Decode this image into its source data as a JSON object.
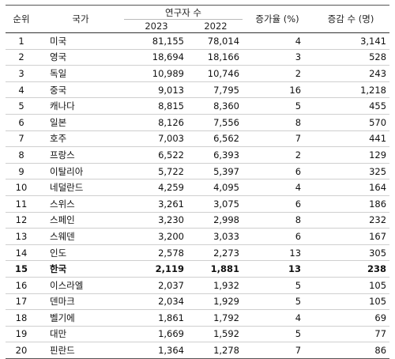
{
  "headers": {
    "rank": "순위",
    "country": "국가",
    "researchers": "연구자 수",
    "year_2023": "2023",
    "year_2022": "2022",
    "growth_rate": "증가율 (%)",
    "change": "증감 수 (명)"
  },
  "rows": [
    {
      "rank": "1",
      "country": "미국",
      "y2023": "81,155",
      "y2022": "78,014",
      "rate": "4",
      "diff": "3,141"
    },
    {
      "rank": "2",
      "country": "영국",
      "y2023": "18,694",
      "y2022": "18,166",
      "rate": "3",
      "diff": "528"
    },
    {
      "rank": "3",
      "country": "독일",
      "y2023": "10,989",
      "y2022": "10,746",
      "rate": "2",
      "diff": "243"
    },
    {
      "rank": "4",
      "country": "중국",
      "y2023": "9,013",
      "y2022": "7,795",
      "rate": "16",
      "diff": "1,218"
    },
    {
      "rank": "5",
      "country": "캐나다",
      "y2023": "8,815",
      "y2022": "8,360",
      "rate": "5",
      "diff": "455"
    },
    {
      "rank": "6",
      "country": "일본",
      "y2023": "8,126",
      "y2022": "7,556",
      "rate": "8",
      "diff": "570"
    },
    {
      "rank": "7",
      "country": "호주",
      "y2023": "7,003",
      "y2022": "6,562",
      "rate": "7",
      "diff": "441"
    },
    {
      "rank": "8",
      "country": "프랑스",
      "y2023": "6,522",
      "y2022": "6,393",
      "rate": "2",
      "diff": "129"
    },
    {
      "rank": "9",
      "country": "이탈리아",
      "y2023": "5,722",
      "y2022": "5,397",
      "rate": "6",
      "diff": "325"
    },
    {
      "rank": "10",
      "country": "네덜란드",
      "y2023": "4,259",
      "y2022": "4,095",
      "rate": "4",
      "diff": "164"
    },
    {
      "rank": "11",
      "country": "스위스",
      "y2023": "3,261",
      "y2022": "3,075",
      "rate": "6",
      "diff": "186"
    },
    {
      "rank": "12",
      "country": "스페인",
      "y2023": "3,230",
      "y2022": "2,998",
      "rate": "8",
      "diff": "232"
    },
    {
      "rank": "13",
      "country": "스웨덴",
      "y2023": "3,200",
      "y2022": "3,033",
      "rate": "6",
      "diff": "167"
    },
    {
      "rank": "14",
      "country": "인도",
      "y2023": "2,578",
      "y2022": "2,273",
      "rate": "13",
      "diff": "305"
    },
    {
      "rank": "15",
      "country": "한국",
      "y2023": "2,119",
      "y2022": "1,881",
      "rate": "13",
      "diff": "238",
      "highlight": true
    },
    {
      "rank": "16",
      "country": "이스라엘",
      "y2023": "2,037",
      "y2022": "1,932",
      "rate": "5",
      "diff": "105"
    },
    {
      "rank": "17",
      "country": "덴마크",
      "y2023": "2,034",
      "y2022": "1,929",
      "rate": "5",
      "diff": "105"
    },
    {
      "rank": "18",
      "country": "벨기에",
      "y2023": "1,861",
      "y2022": "1,792",
      "rate": "4",
      "diff": "69"
    },
    {
      "rank": "19",
      "country": "대만",
      "y2023": "1,669",
      "y2022": "1,592",
      "rate": "5",
      "diff": "77"
    },
    {
      "rank": "20",
      "country": "핀란드",
      "y2023": "1,364",
      "y2022": "1,278",
      "rate": "7",
      "diff": "86"
    }
  ]
}
